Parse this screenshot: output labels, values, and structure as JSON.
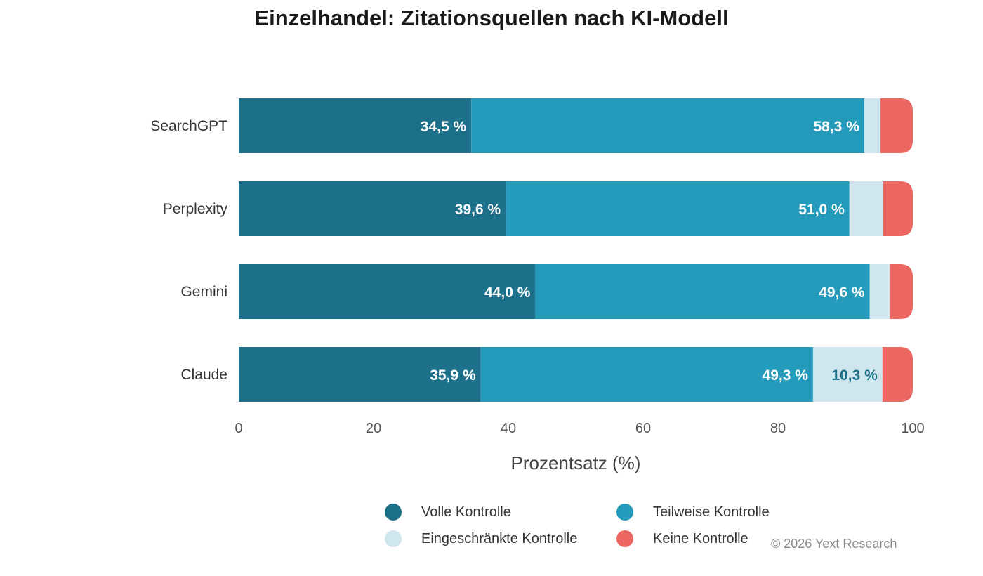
{
  "chart_data": {
    "type": "bar",
    "orientation": "horizontal",
    "stacked": true,
    "title": "Einzelhandel: Zitationsquellen nach KI-Modell",
    "xlabel": "Prozentsatz (%)",
    "ylabel": "",
    "xlim": [
      0,
      100
    ],
    "xticks": [
      "0",
      "20",
      "40",
      "60",
      "80",
      "100"
    ],
    "categories": [
      "SearchGPT",
      "Perplexity",
      "Gemini",
      "Claude"
    ],
    "series": [
      {
        "name": "Volle Kontrolle",
        "color": "#1c7089",
        "label_color": "#ffffff",
        "values": [
          34.5,
          39.6,
          44.0,
          35.9
        ],
        "labels": [
          "34,5 %",
          "39,6 %",
          "44,0 %",
          "35,9 %"
        ]
      },
      {
        "name": "Teilweise Kontrolle",
        "color": "#259bbc",
        "label_color": "#ffffff",
        "values": [
          58.3,
          51.0,
          49.6,
          49.3
        ],
        "labels": [
          "58,3 %",
          "51,0 %",
          "49,6 %",
          "49,3 %"
        ]
      },
      {
        "name": "Eingeschränkte Kontrolle",
        "color": "#cfe6ee",
        "label_color": "#1c7089",
        "values": [
          2.4,
          5.0,
          3.0,
          10.3
        ],
        "labels": [
          "",
          "",
          "",
          "10,3 %"
        ]
      },
      {
        "name": "Keine Kontrolle",
        "color": "#ec6762",
        "label_color": "#ffffff",
        "values": [
          4.8,
          4.4,
          3.4,
          4.5
        ],
        "labels": [
          "",
          "",
          "",
          ""
        ]
      }
    ],
    "legend_position": "bottom",
    "grid": false
  },
  "credit": "© 2026 Yext Research"
}
